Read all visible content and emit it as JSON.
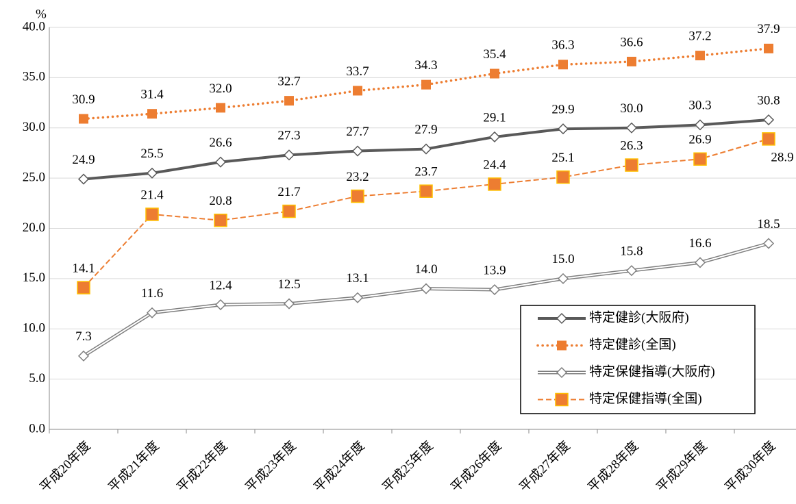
{
  "chart_data": {
    "type": "line",
    "y_unit": "%",
    "categories": [
      "平成20年度",
      "平成21年度",
      "平成22年度",
      "平成23年度",
      "平成24年度",
      "平成25年度",
      "平成26年度",
      "平成27年度",
      "平成28年度",
      "平成29年度",
      "平成30年度"
    ],
    "series": [
      {
        "name": "特定健診(大阪府)",
        "color": "#595959",
        "line_style": "solid",
        "marker": "diamond",
        "values": [
          24.9,
          25.5,
          26.6,
          27.3,
          27.7,
          27.9,
          29.1,
          29.9,
          30.0,
          30.3,
          30.8
        ],
        "value_labels": [
          "24.9",
          "25.5",
          "26.6",
          "27.3",
          "27.7",
          "27.9",
          "29.1",
          "29.9",
          "30.0",
          "30.3",
          "30.8"
        ]
      },
      {
        "name": "特定健診(全国)",
        "color": "#ed7d31",
        "line_style": "dotted",
        "marker": "square",
        "values": [
          30.9,
          31.4,
          32.0,
          32.7,
          33.7,
          34.3,
          35.4,
          36.3,
          36.6,
          37.2,
          37.9
        ],
        "value_labels": [
          "30.9",
          "31.4",
          "32.0",
          "32.7",
          "33.7",
          "34.3",
          "35.4",
          "36.3",
          "36.6",
          "37.2",
          "37.9"
        ]
      },
      {
        "name": "特定保健指導(大阪府)",
        "color": "#7f7f7f",
        "line_style": "double",
        "marker": "diamond",
        "values": [
          7.3,
          11.6,
          12.4,
          12.5,
          13.1,
          14.0,
          13.9,
          15.0,
          15.8,
          16.6,
          18.5
        ],
        "value_labels": [
          "7.3",
          "11.6",
          "12.4",
          "12.5",
          "13.1",
          "14.0",
          "13.9",
          "15.0",
          "15.8",
          "16.6",
          "18.5"
        ]
      },
      {
        "name": "特定保健指導(全国)",
        "color": "#ed7d31",
        "line_style": "dashed",
        "marker": "square",
        "values": [
          14.1,
          21.4,
          20.8,
          21.7,
          23.2,
          23.7,
          24.4,
          25.1,
          26.3,
          26.9,
          28.9
        ],
        "value_labels": [
          "14.1",
          "21.4",
          "20.8",
          "21.7",
          "23.2",
          "23.7",
          "24.4",
          "25.1",
          "26.3",
          "26.9",
          "28.9"
        ]
      }
    ],
    "ylim": [
      0,
      40
    ],
    "yticks": [
      {
        "value": 0,
        "label": "0.0"
      },
      {
        "value": 5,
        "label": "5.0"
      },
      {
        "value": 10,
        "label": "10.0"
      },
      {
        "value": 15,
        "label": "15.0"
      },
      {
        "value": 20,
        "label": "20.0"
      },
      {
        "value": 25,
        "label": "25.0"
      },
      {
        "value": 30,
        "label": "30.0"
      },
      {
        "value": 35,
        "label": "35.0"
      },
      {
        "value": 40,
        "label": "40.0"
      }
    ],
    "grid": true,
    "legend": "lower right"
  }
}
